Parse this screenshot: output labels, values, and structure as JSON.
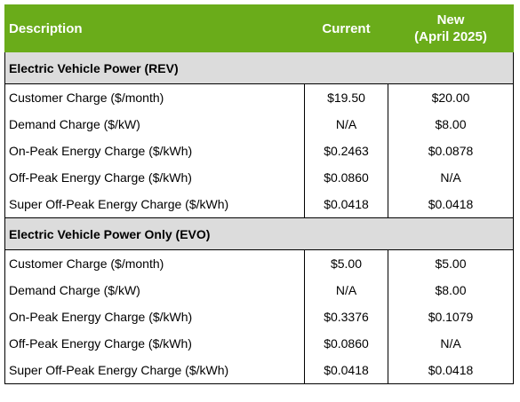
{
  "header": {
    "description": "Description",
    "current": "Current",
    "new_line1": "New",
    "new_line2": "(April 2025)"
  },
  "sections": [
    {
      "title": "Electric Vehicle Power (REV)",
      "rows": [
        {
          "label": "Customer Charge ($/month)",
          "current": "$19.50",
          "new": "$20.00"
        },
        {
          "label": "Demand Charge ($/kW)",
          "current": "N/A",
          "new": "$8.00"
        },
        {
          "label": "On-Peak Energy Charge ($/kWh)",
          "current": "$0.2463",
          "new": "$0.0878"
        },
        {
          "label": "Off-Peak Energy Charge ($/kWh)",
          "current": "$0.0860",
          "new": "N/A"
        },
        {
          "label": "Super Off-Peak Energy Charge ($/kWh)",
          "current": "$0.0418",
          "new": "$0.0418"
        }
      ]
    },
    {
      "title": "Electric Vehicle Power Only (EVO)",
      "rows": [
        {
          "label": "Customer Charge ($/month)",
          "current": "$5.00",
          "new": "$5.00"
        },
        {
          "label": "Demand Charge ($/kW)",
          "current": "N/A",
          "new": "$8.00"
        },
        {
          "label": "On-Peak Energy Charge ($/kWh)",
          "current": "$0.3376",
          "new": "$0.1079"
        },
        {
          "label": "Off-Peak Energy Charge ($/kWh)",
          "current": "$0.0860",
          "new": "N/A"
        },
        {
          "label": "Super Off-Peak Energy Charge ($/kWh)",
          "current": "$0.0418",
          "new": "$0.0418"
        }
      ]
    }
  ],
  "colors": {
    "header_bg": "#6aac1a",
    "section_bg": "#dcdcdc"
  }
}
